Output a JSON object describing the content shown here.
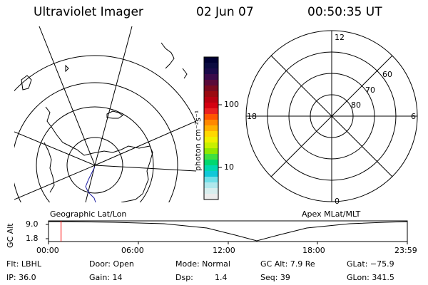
{
  "header": {
    "instrument": "Ultraviolet Imager",
    "date": "02 Jun 07",
    "time": "00:50:35 UT"
  },
  "colorbar": {
    "unit_label": "photon cm⁻²s⁻¹",
    "ticks": [
      "100",
      "10"
    ],
    "colors": [
      "#000033",
      "#0b0b40",
      "#1a0a4a",
      "#3a0a4a",
      "#5a0a3a",
      "#7a0a20",
      "#9a0a10",
      "#b80010",
      "#d40010",
      "#ea2020",
      "#ff5500",
      "#ff8800",
      "#ffb000",
      "#ffd800",
      "#f0f000",
      "#c8f000",
      "#90e800",
      "#40e040",
      "#00d870",
      "#00d8b0",
      "#10c8d8",
      "#70dfe8",
      "#b0e8ec",
      "#d8eeee",
      "#ececec"
    ]
  },
  "geo_panel": {
    "label": "Geographic Lat/Lon"
  },
  "apex_panel": {
    "label": "Apex MLat/MLT",
    "mlt_labels": {
      "top": "12",
      "left": "18",
      "right": "6",
      "bottom": "0"
    },
    "lat_labels": [
      "60",
      "70",
      "80"
    ]
  },
  "timeline": {
    "ylabel": "GC Alt",
    "yticks": [
      "9.0",
      "1.8"
    ],
    "xticks": [
      "00:00",
      "06:00",
      "12:00",
      "18:00",
      "23:59"
    ],
    "current_time_fraction": 0.035,
    "cursor_color": "#ff0000"
  },
  "info": {
    "flt": "Flt: LBHL",
    "ip": "IP: 36.0",
    "door": "Door: Open",
    "gain": "Gain: 14",
    "mode": "Mode: Normal",
    "dsp_label": "Dsp:",
    "dsp_value": "1.4",
    "gcalt": "GC Alt: 7.9 Re",
    "seq": "Seq: 39",
    "glat": "GLat: −75.9",
    "glon": "GLon: 341.5"
  }
}
